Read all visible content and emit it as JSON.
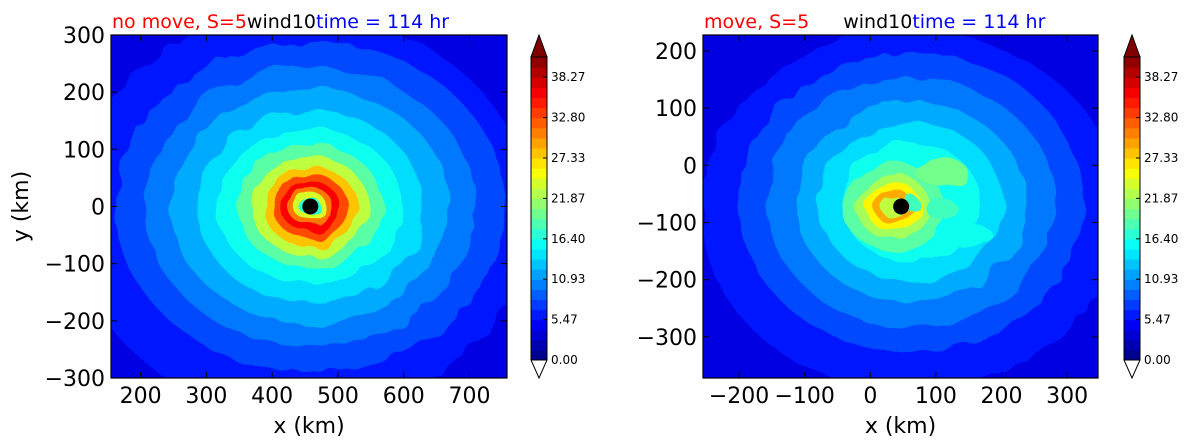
{
  "chart_data": [
    {
      "type": "heatmap",
      "title_parts": [
        "no move, S=5",
        "wind10",
        "time = 114 hr"
      ],
      "title_colors": [
        "#ff0000",
        "#000000",
        "#0000ff"
      ],
      "xlabel": "x (km)",
      "ylabel": "y (km)",
      "xlim": [
        155,
        757
      ],
      "ylim": [
        -300,
        300
      ],
      "xticks": [
        200,
        300,
        400,
        500,
        600,
        700
      ],
      "yticks": [
        300,
        200,
        100,
        0,
        -100,
        -200,
        -300
      ],
      "xtick_labels": [
        "200",
        "300",
        "400",
        "500",
        "600",
        "700"
      ],
      "ytick_labels": [
        "300",
        "200",
        "100",
        "0",
        "−100",
        "−200",
        "−300"
      ],
      "center_marker": [
        458,
        0
      ],
      "field_description": "10 m wind speed: concentric rings peaking (~38) in a ring of radius ~40 km around the storm center",
      "colorbar": {
        "min": 0.0,
        "max": 41.0,
        "ticks": [
          0.0,
          5.47,
          10.93,
          16.4,
          21.87,
          27.33,
          32.8,
          38.27
        ],
        "tick_labels": [
          "0.00",
          "5.47",
          "10.93",
          "16.40",
          "21.87",
          "27.33",
          "32.80",
          "38.27"
        ],
        "extend": "both",
        "colormap": "jet"
      }
    },
    {
      "type": "heatmap",
      "title_parts": [
        "move, S=5",
        "wind10",
        "time = 114 hr"
      ],
      "title_colors": [
        "#ff0000",
        "#000000",
        "#0000ff"
      ],
      "xlabel": "x (km)",
      "ylabel": "",
      "xlim": [
        -255,
        347
      ],
      "ylim": [
        -372,
        228
      ],
      "xticks": [
        -200,
        -100,
        0,
        100,
        200,
        300
      ],
      "yticks": [
        200,
        100,
        0,
        -100,
        -200,
        -300
      ],
      "xtick_labels": [
        "−200",
        "−100",
        "0",
        "100",
        "200",
        "300"
      ],
      "ytick_labels": [
        "200",
        "100",
        "0",
        "−100",
        "−200",
        "−300"
      ],
      "center_marker": [
        47,
        -72
      ],
      "field_description": "10 m wind speed: asymmetric storm, maximum (~30) on the west-southwest side of the center",
      "colorbar": {
        "min": 0.0,
        "max": 41.0,
        "ticks": [
          0.0,
          5.47,
          10.93,
          16.4,
          21.87,
          27.33,
          32.8,
          38.27
        ],
        "tick_labels": [
          "0.00",
          "5.47",
          "10.93",
          "16.40",
          "21.87",
          "27.33",
          "32.80",
          "38.27"
        ],
        "extend": "both",
        "colormap": "jet"
      }
    }
  ]
}
